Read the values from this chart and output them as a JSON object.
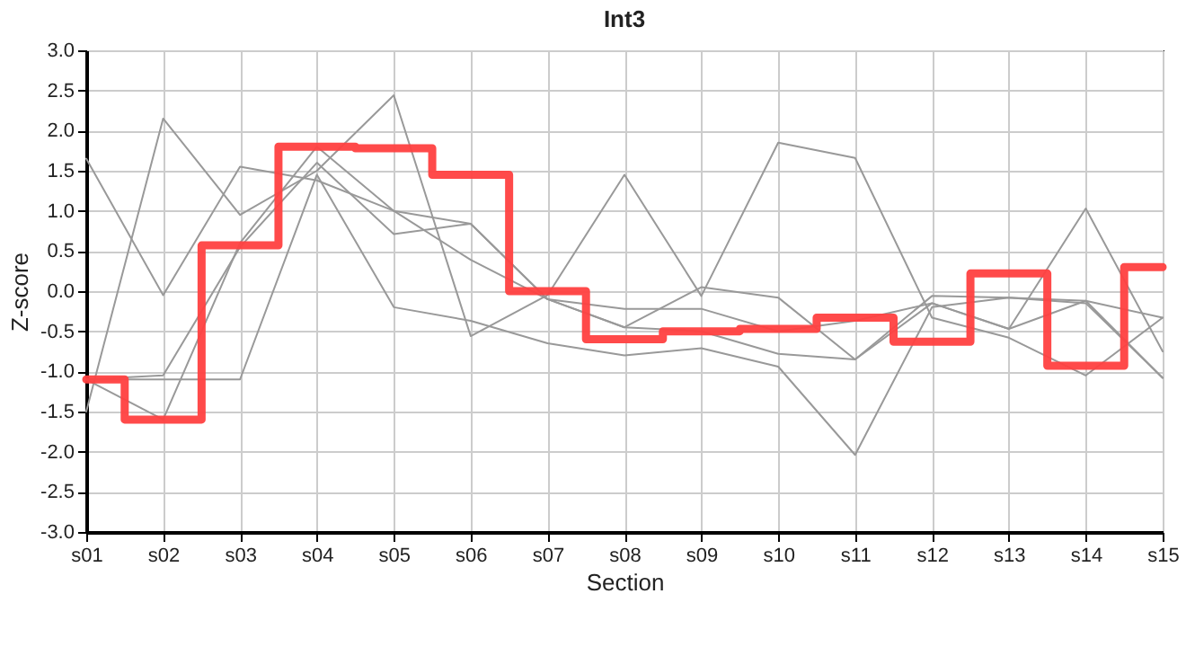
{
  "chart_data": {
    "type": "line",
    "title": "Int3",
    "xlabel": "Section",
    "ylabel": "Z-score",
    "categories": [
      "s01",
      "s02",
      "s03",
      "s04",
      "s05",
      "s06",
      "s07",
      "s08",
      "s09",
      "s10",
      "s11",
      "s12",
      "s13",
      "s14",
      "s15"
    ],
    "series": [
      {
        "color": "#999999",
        "values": [
          1.65,
          -0.05,
          1.55,
          1.38,
          1.0,
          0.39,
          -0.1,
          -0.45,
          0.05,
          -0.08,
          -0.85,
          -0.06,
          -0.08,
          -0.12,
          -1.08
        ]
      },
      {
        "color": "#999999",
        "values": [
          -1.5,
          2.15,
          0.95,
          1.5,
          2.44,
          -0.56,
          -0.05,
          1.45,
          -0.06,
          1.85,
          1.66,
          -0.33,
          -0.58,
          -1.05,
          -0.33
        ]
      },
      {
        "color": "#999999",
        "values": [
          -1.1,
          -1.05,
          0.55,
          1.6,
          0.71,
          0.84,
          -0.1,
          -0.22,
          -0.22,
          -0.5,
          -0.37,
          -0.15,
          -0.47,
          1.03,
          -0.75
        ]
      },
      {
        "color": "#999999",
        "values": [
          -1.1,
          -1.1,
          -1.1,
          1.45,
          -0.2,
          -0.37,
          -0.65,
          -0.8,
          -0.71,
          -0.94,
          -2.04,
          -0.2,
          -0.08,
          -0.15,
          -1.08
        ]
      },
      {
        "color": "#999999",
        "values": [
          -1.1,
          -1.6,
          0.6,
          1.8,
          1.0,
          0.84,
          -0.1,
          -0.45,
          -0.5,
          -0.78,
          -0.85,
          -0.15,
          -0.47,
          -0.12,
          -0.33
        ]
      },
      {
        "type": "step",
        "color": "#ff4040",
        "values": [
          -1.1,
          -1.6,
          0.57,
          1.8,
          1.78,
          1.45,
          0.0,
          -0.6,
          -0.5,
          -0.47,
          -0.33,
          -0.63,
          0.22,
          -0.93,
          0.3
        ]
      }
    ],
    "ylim": [
      -3,
      3
    ],
    "yticks": [
      {
        "value": -3,
        "label": "-3.0"
      },
      {
        "value": -2.5,
        "label": "-2.5"
      },
      {
        "value": -2,
        "label": "-2.0"
      },
      {
        "value": -1.5,
        "label": "-1.5"
      },
      {
        "value": -1,
        "label": "-1.0"
      },
      {
        "value": -0.5,
        "label": "-0.5"
      },
      {
        "value": 0,
        "label": "0.0"
      },
      {
        "value": 0.5,
        "label": "0.5"
      },
      {
        "value": 1,
        "label": "1.0"
      },
      {
        "value": 1.5,
        "label": "1.5"
      },
      {
        "value": 2,
        "label": "2.0"
      },
      {
        "value": 2.5,
        "label": "2.5"
      },
      {
        "value": 3,
        "label": "3.0"
      }
    ],
    "grid": true
  }
}
